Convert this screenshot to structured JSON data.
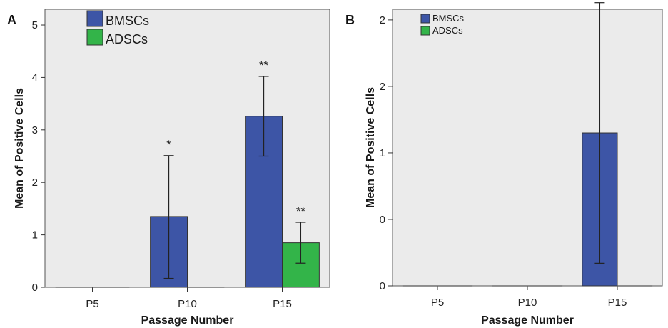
{
  "chart_data": [
    {
      "type": "bar",
      "panel_label": "A",
      "categories": [
        "P5",
        "P10",
        "P15"
      ],
      "series": [
        {
          "name": "BMSCs",
          "color": "#3d55a6",
          "values": [
            0,
            1.35,
            3.26
          ],
          "error_low": [
            0,
            0.17,
            2.5
          ],
          "error_high": [
            0,
            2.51,
            4.02
          ],
          "significance": [
            "",
            "*",
            "**"
          ]
        },
        {
          "name": "ADSCs",
          "color": "#33b449",
          "values": [
            0,
            0,
            0.85
          ],
          "error_low": [
            0,
            0,
            0.46
          ],
          "error_high": [
            0,
            0,
            1.24
          ],
          "significance": [
            "",
            "",
            "**"
          ]
        }
      ],
      "yticks": [
        "0",
        "1",
        "2",
        "3",
        "4",
        "5"
      ],
      "ylim": [
        0,
        5.3
      ],
      "xlabel": "Passage Number",
      "ylabel": "Mean of Positive Cells",
      "legend_position": "top-left",
      "legend_style": "large",
      "background": "#ebebeb"
    },
    {
      "type": "bar",
      "panel_label": "B",
      "categories": [
        "P5",
        "P10",
        "P15"
      ],
      "series": [
        {
          "name": "BMSCs",
          "color": "#3d55a6",
          "values": [
            0,
            0,
            1.15
          ],
          "error_low": [
            0,
            0,
            0.17
          ],
          "error_high": [
            0,
            0,
            2.13
          ],
          "significance": [
            "",
            "",
            "**"
          ]
        },
        {
          "name": "ADSCs",
          "color": "#33b449",
          "values": [
            0,
            0,
            0
          ],
          "error_low": [
            0,
            0,
            0
          ],
          "error_high": [
            0,
            0,
            0
          ],
          "significance": [
            "",
            "",
            ""
          ]
        }
      ],
      "yticks": [
        "0",
        "0",
        "1",
        "2",
        "2"
      ],
      "ytick_values": [
        0,
        0.5,
        1,
        1.5,
        2
      ],
      "ylim": [
        0,
        2.08
      ],
      "xlabel": "Passage Number",
      "ylabel": "Mean of Positive Cells",
      "legend_position": "top-left",
      "legend_style": "small",
      "background": "#ebebeb"
    }
  ]
}
